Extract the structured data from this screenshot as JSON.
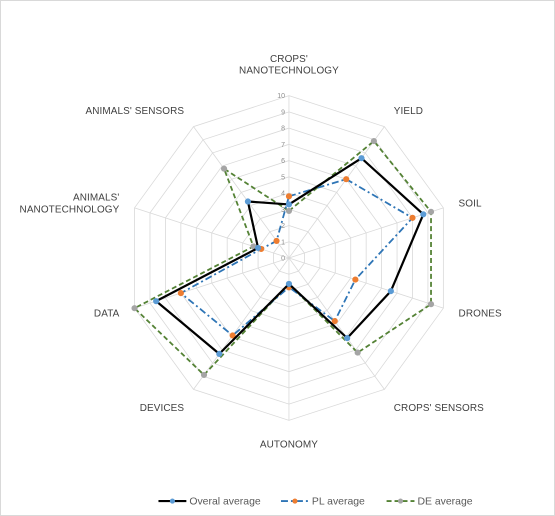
{
  "chart_data": {
    "type": "radar",
    "title": "",
    "categories": [
      {
        "lines": [
          "CROPS'",
          "NANOTECHNOLOGY"
        ]
      },
      {
        "lines": [
          "YIELD"
        ]
      },
      {
        "lines": [
          "SOIL"
        ]
      },
      {
        "lines": [
          "DRONES"
        ]
      },
      {
        "lines": [
          "CROPS' SENSORS"
        ]
      },
      {
        "lines": [
          "AUTONOMY"
        ]
      },
      {
        "lines": [
          "DEVICES"
        ]
      },
      {
        "lines": [
          "DATA"
        ]
      },
      {
        "lines": [
          "ANIMALS'",
          "NANOTECHNOLOGY"
        ]
      },
      {
        "lines": [
          "ANIMALS' SENSORS"
        ]
      }
    ],
    "rlim": [
      0,
      10
    ],
    "ticks": [
      "0",
      "1",
      "2",
      "3",
      "4",
      "5",
      "6",
      "7",
      "8",
      "9",
      "10"
    ],
    "grid": true,
    "legend_position": "bottom",
    "series": [
      {
        "name": "Overal average",
        "color": "#000000",
        "dash": "solid",
        "marker": "circle",
        "marker_color": "#5b9bd5",
        "values": [
          3.3,
          7.6,
          8.7,
          6.6,
          6.1,
          1.6,
          7.3,
          8.6,
          2.0,
          4.3
        ]
      },
      {
        "name": "PL average",
        "color": "#2e75b6",
        "dash": "dashdot",
        "marker": "circle",
        "marker_color": "#ed7d31",
        "values": [
          3.8,
          6.0,
          8.0,
          4.3,
          4.8,
          1.8,
          5.9,
          7.0,
          1.8,
          1.3
        ]
      },
      {
        "name": "DE average",
        "color": "#548235",
        "dash": "dash",
        "marker": "circle",
        "marker_color": "#a5a5a5",
        "values": [
          2.9,
          8.9,
          9.2,
          9.2,
          7.2,
          1.6,
          8.9,
          10.0,
          2.3,
          6.8
        ]
      }
    ]
  }
}
